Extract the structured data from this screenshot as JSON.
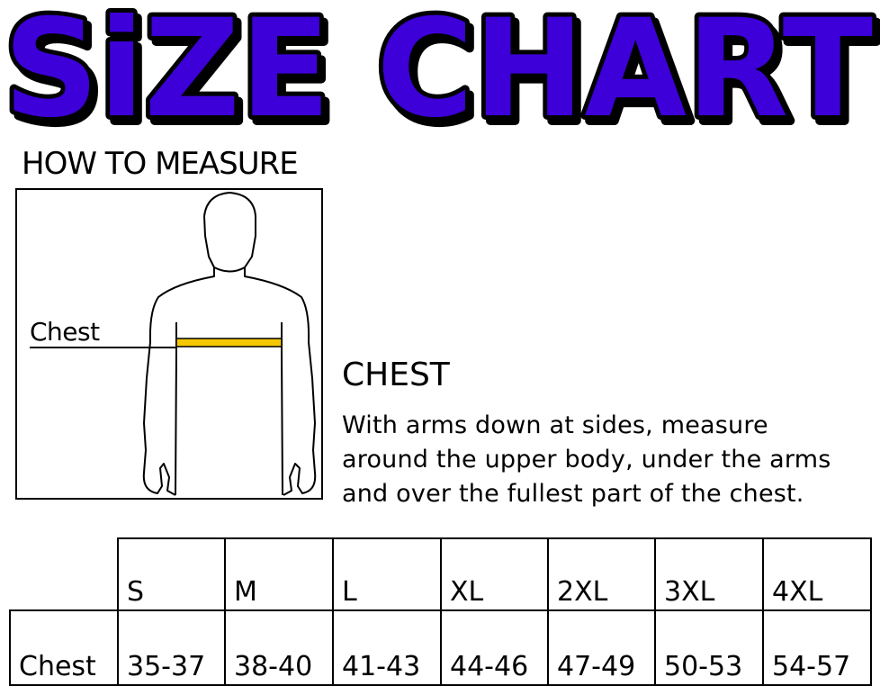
{
  "title": "SiZE CHART",
  "title_colors": {
    "fill": "#3d00d9",
    "outline": "#000000"
  },
  "how_to_measure": "HOW TO MEASURE",
  "figure": {
    "label": "Chest",
    "tape_color": "#f5c800"
  },
  "chest_section": {
    "heading": "CHEST",
    "lines": [
      "With arms down at sides, measure",
      "around the upper body, under the arms",
      "and over the fullest part of the chest."
    ]
  },
  "table": {
    "sizes": [
      "S",
      "M",
      "L",
      "XL",
      "2XL",
      "3XL",
      "4XL"
    ],
    "rows": [
      {
        "label": "Chest",
        "values": [
          "35-37",
          "38-40",
          "41-43",
          "44-46",
          "47-49",
          "50-53",
          "54-57"
        ]
      }
    ]
  }
}
